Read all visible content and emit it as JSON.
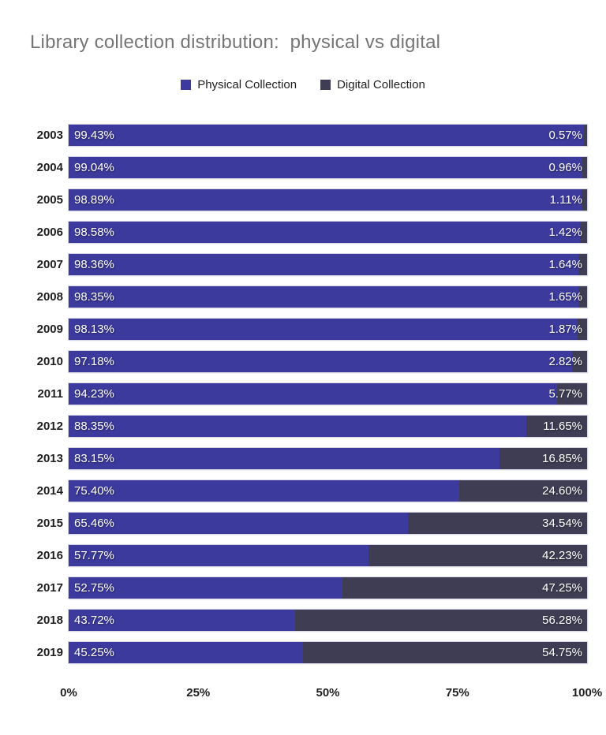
{
  "title": "Library collection distribution:  physical vs digital",
  "legend": {
    "items": [
      {
        "label": "Physical Collection",
        "color": "#3c3a9d"
      },
      {
        "label": "Digital Collection",
        "color": "#3e3d53"
      }
    ]
  },
  "axis": {
    "ticks": [
      "0%",
      "25%",
      "50%",
      "75%",
      "100%"
    ],
    "tick_values": [
      0,
      25,
      50,
      75,
      100
    ]
  },
  "chart_data": {
    "type": "bar",
    "orientation": "horizontal",
    "stacked": true,
    "title": "Library collection distribution:  physical vs digital",
    "xlabel": "",
    "ylabel": "",
    "xlim": [
      0,
      100
    ],
    "x_ticks": [
      "0%",
      "25%",
      "50%",
      "75%",
      "100%"
    ],
    "legend_position": "top",
    "grid": false,
    "value_label_format": "two-decimal percent",
    "categories": [
      "2003",
      "2004",
      "2005",
      "2006",
      "2007",
      "2008",
      "2009",
      "2010",
      "2011",
      "2012",
      "2013",
      "2014",
      "2015",
      "2016",
      "2017",
      "2018",
      "2019"
    ],
    "series": [
      {
        "name": "Physical Collection",
        "color": "#3c3a9d",
        "values": [
          99.43,
          99.04,
          98.89,
          98.58,
          98.36,
          98.35,
          98.13,
          97.18,
          94.23,
          88.35,
          83.15,
          75.4,
          65.46,
          57.77,
          52.75,
          43.72,
          45.25
        ]
      },
      {
        "name": "Digital Collection",
        "color": "#3e3d53",
        "values": [
          0.57,
          0.96,
          1.11,
          1.42,
          1.64,
          1.65,
          1.87,
          2.82,
          5.77,
          11.65,
          16.85,
          24.6,
          34.54,
          42.23,
          47.25,
          56.28,
          54.75
        ]
      }
    ]
  }
}
